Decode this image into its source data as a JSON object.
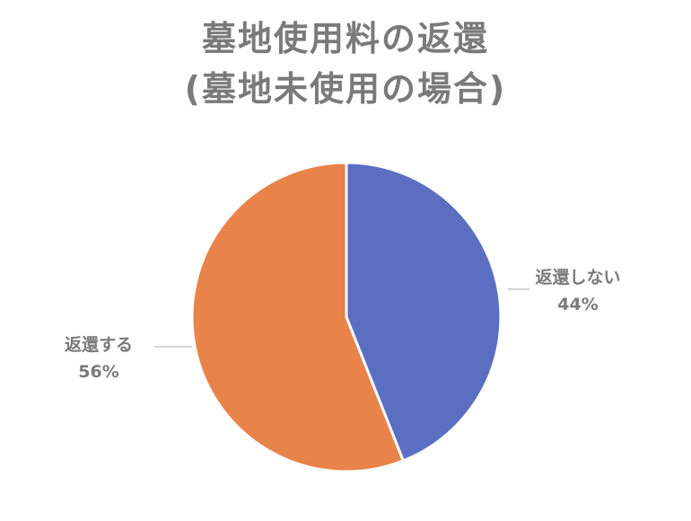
{
  "chart_data": {
    "type": "pie",
    "title_lines": [
      "墓地使用料の返還",
      "(墓地未使用の場合)"
    ],
    "slices": [
      {
        "label": "返還しない",
        "value": 44,
        "value_label": "44%",
        "color": "#5b6fc2"
      },
      {
        "label": "返還する",
        "value": 56,
        "value_label": "56%",
        "color": "#e8834a"
      }
    ],
    "start_angle": "12 o'clock",
    "direction": "clockwise",
    "legend": "none"
  }
}
